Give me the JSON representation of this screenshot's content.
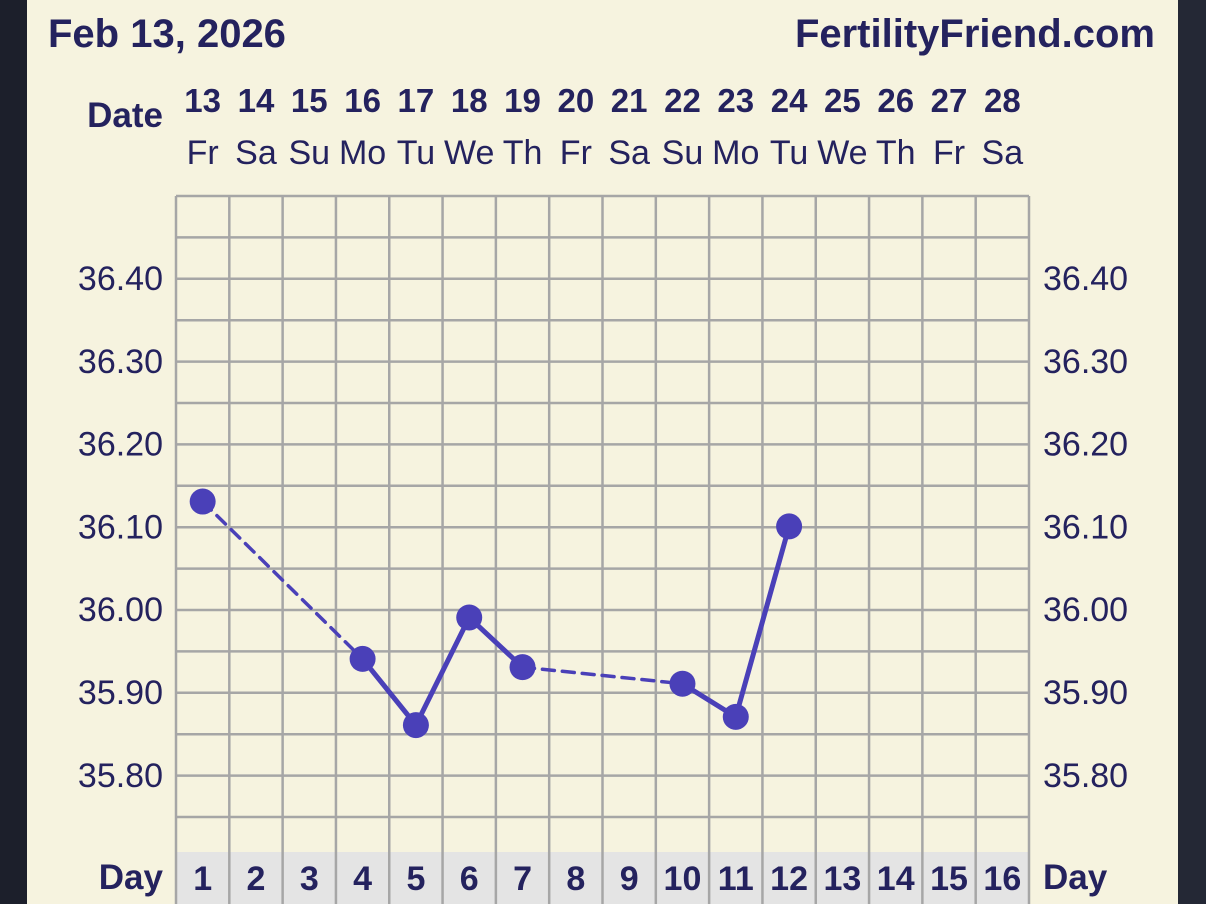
{
  "header": {
    "date_title": "Feb 13, 2026",
    "site": "FertilityFriend.com"
  },
  "labels": {
    "date": "Date",
    "day": "Day"
  },
  "colors": {
    "background": "#f6f3df",
    "grid": "#a6a6a6",
    "text": "#24225e",
    "series": "#4a40b8",
    "day_row": "#e4e4e4"
  },
  "chart_data": {
    "type": "line",
    "dates": [
      "13",
      "14",
      "15",
      "16",
      "17",
      "18",
      "19",
      "20",
      "21",
      "22",
      "23",
      "24",
      "25",
      "26",
      "27",
      "28"
    ],
    "weekdays": [
      "Fr",
      "Sa",
      "Su",
      "Mo",
      "Tu",
      "We",
      "Th",
      "Fr",
      "Sa",
      "Su",
      "Mo",
      "Tu",
      "We",
      "Th",
      "Fr",
      "Sa"
    ],
    "days": [
      "1",
      "2",
      "3",
      "4",
      "5",
      "6",
      "7",
      "8",
      "9",
      "10",
      "11",
      "12",
      "13",
      "14",
      "15",
      "16"
    ],
    "y_ticks": [
      "36.40",
      "36.30",
      "36.20",
      "36.10",
      "36.00",
      "35.90",
      "35.80"
    ],
    "ylim": [
      35.7,
      36.5
    ],
    "grid": true,
    "points": [
      {
        "day": 1,
        "temp": 36.13
      },
      {
        "day": 4,
        "temp": 35.94
      },
      {
        "day": 5,
        "temp": 35.86
      },
      {
        "day": 6,
        "temp": 35.99
      },
      {
        "day": 7,
        "temp": 35.93
      },
      {
        "day": 10,
        "temp": 35.91
      },
      {
        "day": 11,
        "temp": 35.87
      },
      {
        "day": 12,
        "temp": 36.1
      }
    ]
  }
}
